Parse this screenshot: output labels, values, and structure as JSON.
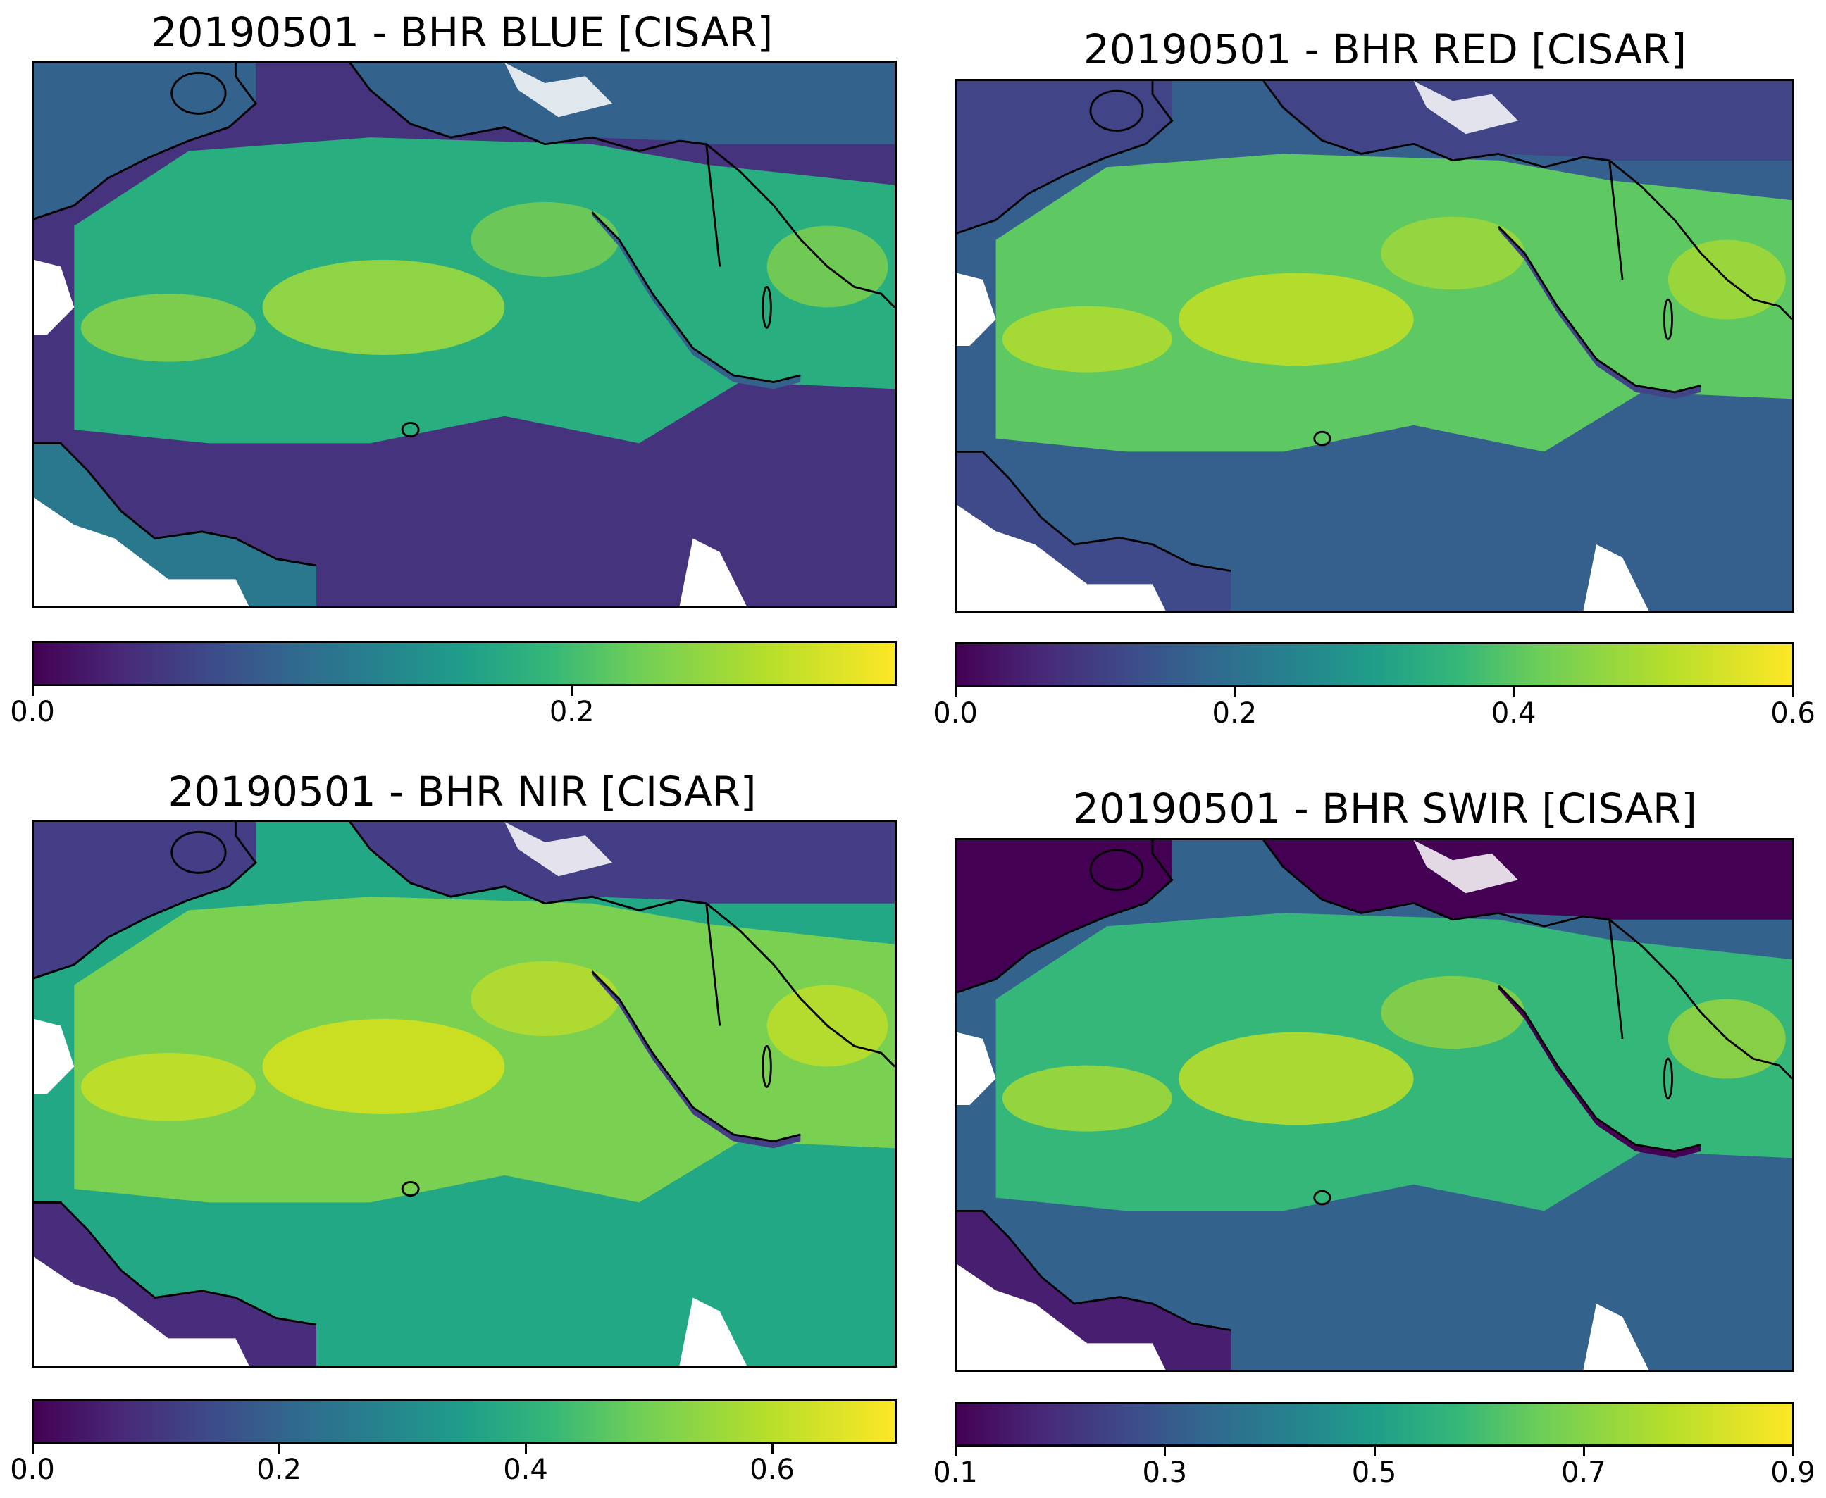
{
  "figure_date": "20190501",
  "colormap": "viridis",
  "colors": {
    "low": "#440154",
    "mid": "#21918c",
    "high": "#fde725",
    "coast": "#000000",
    "nodata": "#ffffff"
  },
  "panels": [
    {
      "id": "blue",
      "title": "20190501 - BHR BLUE [CISAR]",
      "vmin": 0.0,
      "vmax": 0.32,
      "ticks": [
        {
          "value": 0.0,
          "label": "0.0"
        },
        {
          "value": 0.2,
          "label": "0.2"
        }
      ]
    },
    {
      "id": "red",
      "title": "20190501 - BHR RED [CISAR]",
      "vmin": 0.0,
      "vmax": 0.6,
      "ticks": [
        {
          "value": 0.0,
          "label": "0.0"
        },
        {
          "value": 0.2,
          "label": "0.2"
        },
        {
          "value": 0.4,
          "label": "0.4"
        },
        {
          "value": 0.6,
          "label": "0.6"
        }
      ]
    },
    {
      "id": "nir",
      "title": "20190501 - BHR NIR [CISAR]",
      "vmin": 0.0,
      "vmax": 0.7,
      "ticks": [
        {
          "value": 0.0,
          "label": "0.0"
        },
        {
          "value": 0.2,
          "label": "0.2"
        },
        {
          "value": 0.4,
          "label": "0.4"
        },
        {
          "value": 0.6,
          "label": "0.6"
        }
      ]
    },
    {
      "id": "swir",
      "title": "20190501 - BHR SWIR [CISAR]",
      "vmin": 0.1,
      "vmax": 0.9,
      "ticks": [
        {
          "value": 0.1,
          "label": "0.1"
        },
        {
          "value": 0.3,
          "label": "0.3"
        },
        {
          "value": 0.5,
          "label": "0.5"
        },
        {
          "value": 0.7,
          "label": "0.7"
        },
        {
          "value": 0.9,
          "label": "0.9"
        }
      ]
    }
  ]
}
